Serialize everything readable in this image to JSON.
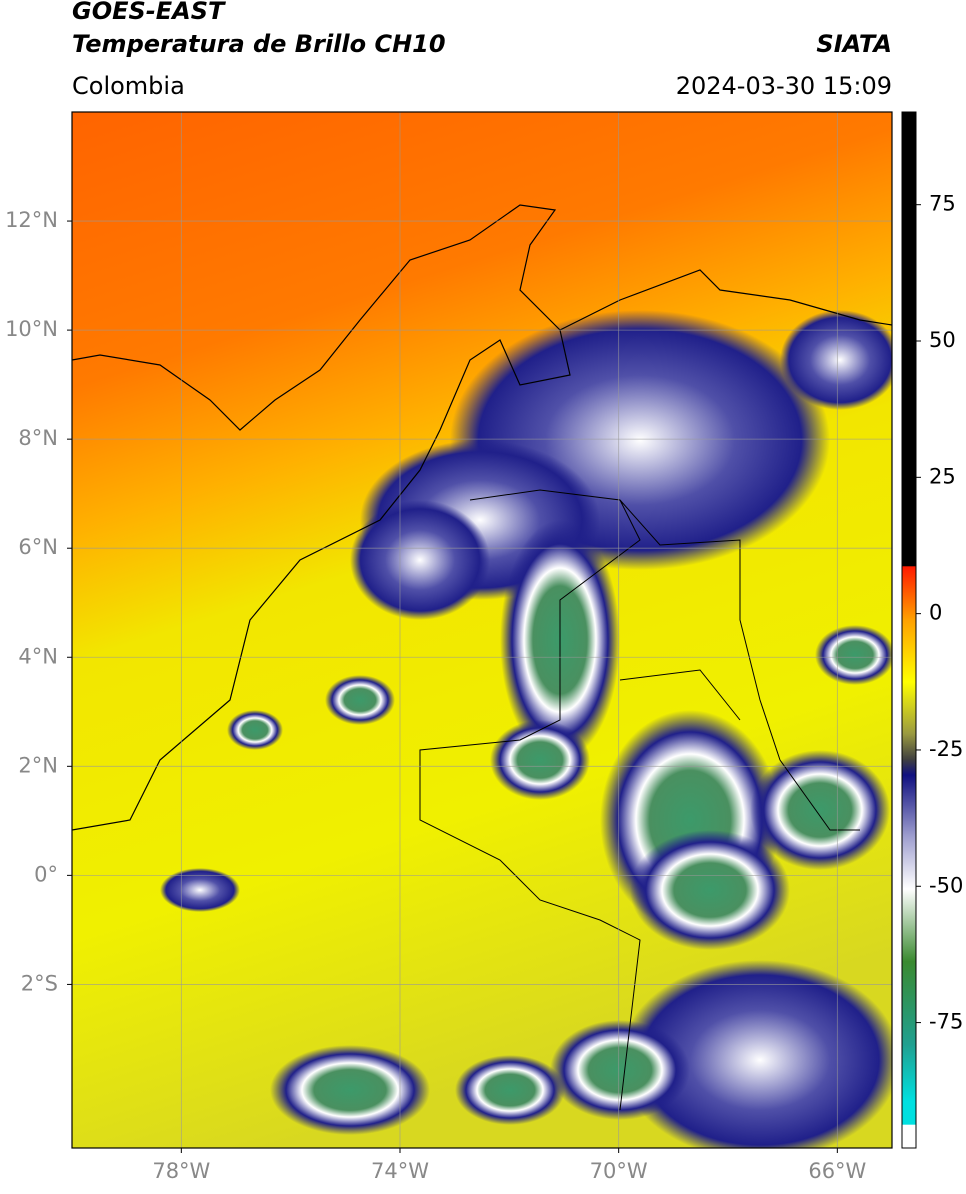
{
  "header": {
    "title": "GOES-EAST",
    "subtitle": "Temperatura de Brillo CH10",
    "source": "SIATA",
    "region": "Colombia",
    "datetime": "2024-03-30 15:09"
  },
  "map": {
    "xlim": [
      -80,
      -65
    ],
    "ylim": [
      -5,
      14
    ],
    "xticks": [
      {
        "value": -78,
        "label": "78°W"
      },
      {
        "value": -74,
        "label": "74°W"
      },
      {
        "value": -70,
        "label": "70°W"
      },
      {
        "value": -66,
        "label": "66°W"
      }
    ],
    "yticks": [
      {
        "value": 12,
        "label": "12°N"
      },
      {
        "value": 10,
        "label": "10°N"
      },
      {
        "value": 8,
        "label": "8°N"
      },
      {
        "value": 6,
        "label": "6°N"
      },
      {
        "value": 4,
        "label": "4°N"
      },
      {
        "value": 2,
        "label": "2°N"
      },
      {
        "value": 0,
        "label": "0°"
      },
      {
        "value": -2,
        "label": "2°S"
      }
    ],
    "grid": true
  },
  "colorbar": {
    "lim": [
      -98,
      92
    ],
    "ticks": [
      75,
      50,
      25,
      0,
      -25,
      -50,
      -75
    ]
  }
}
